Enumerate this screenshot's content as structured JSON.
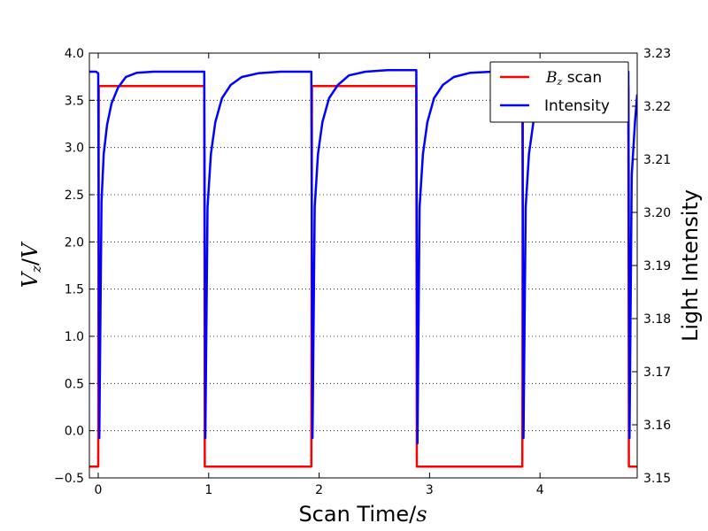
{
  "chart_data": {
    "type": "line",
    "xlabel": "Scan Time/",
    "xlabel_italic": "s",
    "ylabel_left_main": "V",
    "ylabel_left_sub": "z",
    "ylabel_left_tail": "/",
    "ylabel_left_italic": "V",
    "ylabel_right": "Light Intensity",
    "xlim": [
      -0.08,
      4.88
    ],
    "ylim_left": [
      -0.5,
      4.0
    ],
    "ylim_right": [
      3.15,
      3.23
    ],
    "x_ticks": [
      0,
      1,
      2,
      3,
      4
    ],
    "x_tick_labels": [
      "0",
      "1",
      "2",
      "3",
      "4"
    ],
    "y_left_ticks": [
      -0.5,
      0.0,
      0.5,
      1.0,
      1.5,
      2.0,
      2.5,
      3.0,
      3.5,
      4.0
    ],
    "y_left_tick_labels": [
      "−0.5",
      "0.0",
      "0.5",
      "1.0",
      "1.5",
      "2.0",
      "2.5",
      "3.0",
      "3.5",
      "4.0"
    ],
    "y_right_ticks": [
      3.15,
      3.16,
      3.17,
      3.18,
      3.19,
      3.2,
      3.21,
      3.22,
      3.23
    ],
    "y_right_tick_labels": [
      "3.15",
      "3.16",
      "3.17",
      "3.18",
      "3.19",
      "3.20",
      "3.21",
      "3.22",
      "3.23"
    ],
    "grid": "horizontal-dotted",
    "legend_position": "top-right",
    "series": [
      {
        "name": "B",
        "name_sub": "z",
        "name_tail": " scan",
        "axis": "left",
        "color": "#ff0000",
        "x": [
          -0.08,
          0.0,
          0.005,
          0.96,
          0.965,
          1.93,
          1.935,
          2.88,
          2.885,
          3.84,
          3.845,
          4.8,
          4.805,
          4.88
        ],
        "y": [
          -0.38,
          -0.38,
          3.65,
          3.65,
          -0.38,
          -0.38,
          3.65,
          3.65,
          -0.38,
          -0.38,
          3.65,
          3.65,
          -0.38,
          -0.38
        ]
      },
      {
        "name": "Intensity",
        "axis": "right",
        "color": "#0000ff",
        "x": [
          -0.08,
          -0.02,
          0.0,
          0.01,
          0.03,
          0.05,
          0.08,
          0.12,
          0.18,
          0.25,
          0.35,
          0.5,
          0.7,
          0.96,
          0.97,
          0.99,
          1.02,
          1.06,
          1.12,
          1.2,
          1.3,
          1.45,
          1.65,
          1.93,
          1.94,
          1.96,
          1.99,
          2.03,
          2.09,
          2.17,
          2.27,
          2.42,
          2.62,
          2.88,
          2.89,
          2.91,
          2.94,
          2.98,
          3.04,
          3.12,
          3.22,
          3.37,
          3.57,
          3.84,
          3.85,
          3.87,
          3.9,
          3.94,
          4.0,
          4.08,
          4.18,
          4.33,
          4.53,
          4.8,
          4.81,
          4.83,
          4.86,
          4.88
        ],
        "y": [
          3.2265,
          3.2265,
          3.2262,
          3.1575,
          3.202,
          3.211,
          3.2165,
          3.2205,
          3.2235,
          3.2255,
          3.2263,
          3.2265,
          3.2265,
          3.2265,
          3.1575,
          3.201,
          3.211,
          3.217,
          3.2215,
          3.224,
          3.2255,
          3.2262,
          3.2265,
          3.2265,
          3.1575,
          3.201,
          3.211,
          3.217,
          3.2215,
          3.224,
          3.2258,
          3.2265,
          3.2268,
          3.2268,
          3.1565,
          3.201,
          3.211,
          3.217,
          3.2215,
          3.224,
          3.2255,
          3.2263,
          3.2265,
          3.2265,
          3.1575,
          3.201,
          3.211,
          3.217,
          3.2205,
          3.223,
          3.225,
          3.2262,
          3.2265,
          3.2265,
          3.1575,
          3.207,
          3.217,
          3.2222
        ]
      }
    ]
  }
}
